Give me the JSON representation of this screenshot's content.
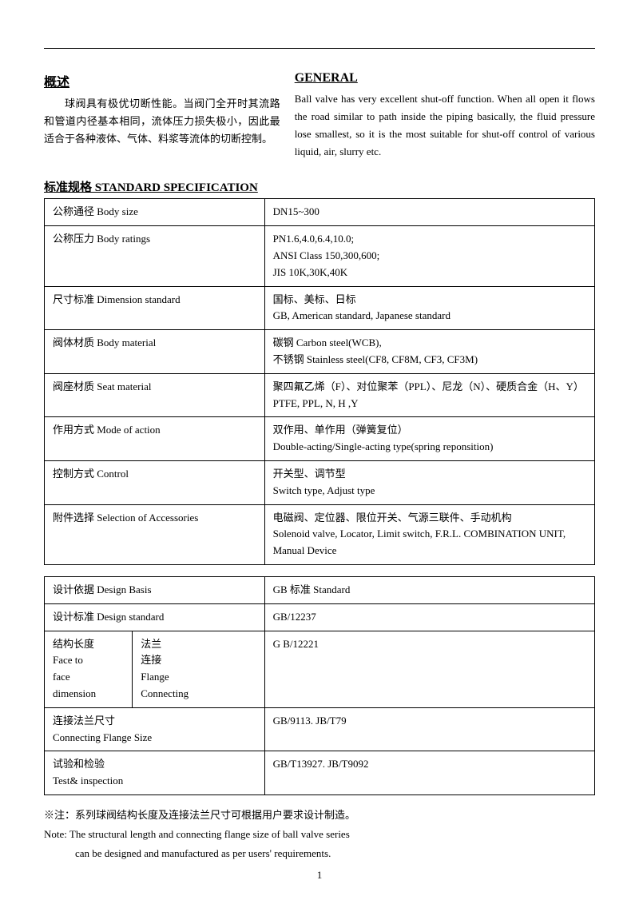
{
  "overview": {
    "cn_heading": "概述",
    "cn_body": "球阀具有极优切断性能。当阀门全开时其流路和管道内径基本相同，流体压力损失极小，因此最适合于各种液体、气体、料浆等流体的切断控制。",
    "en_heading": "GENERAL",
    "en_body": "Ball valve has very excellent shut-off function. When all open it flows the road similar to path inside the piping basically, the fluid pressure lose smallest, so it is the most suitable for shut-off control of various liquid, air, slurry etc."
  },
  "spec_title": "标准规格  STANDARD SPECIFICATION",
  "spec_rows": [
    {
      "label": "公称通径 Body size",
      "value": "DN15~300"
    },
    {
      "label": "公称压力 Body ratings",
      "value": "PN1.6,4.0,6.4,10.0;\nANSI Class 150,300,600;\nJIS 10K,30K,40K"
    },
    {
      "label": "尺寸标准 Dimension standard",
      "value": "国标、美标、日标\nGB, American standard, Japanese standard"
    },
    {
      "label": "阀体材质 Body material",
      "value": "碳钢 Carbon steel(WCB),\n不锈钢 Stainless steel(CF8, CF8M, CF3, CF3M)"
    },
    {
      "label": "阀座材质 Seat material",
      "value": "聚四氟乙烯（F）、对位聚苯（PPL）、尼龙（N）、硬质合金（H、Y）\nPTFE, PPL, N, H ,Y"
    },
    {
      "label": "作用方式 Mode of action",
      "value": "双作用、单作用（弹簧复位）\nDouble-acting/Single-acting type(spring reponsition)"
    },
    {
      "label": "控制方式 Control",
      "value": "开关型、调节型\nSwitch type, Adjust type"
    },
    {
      "label": "附件选择 Selection of Accessories",
      "value": "电磁阀、定位器、限位开关、气源三联件、手动机构\nSolenoid valve, Locator, Limit switch, F.R.L. COMBINATION UNIT, Manual Device"
    }
  ],
  "design_rows": {
    "basis": {
      "label": "设计依据    Design Basis",
      "value": "GB 标准 Standard"
    },
    "std": {
      "label": "设计标准 Design standard",
      "value": " GB/12237"
    },
    "face": {
      "label_a": "结构长度\n  Face to\n    face\ndimension",
      "label_b": "法兰\n连接\n Flange\nConnecting",
      "value": " G B/12221"
    },
    "flange": {
      "label": "连接法兰尺寸\nConnecting Flange Size",
      "value": "GB/9113. JB/T79"
    },
    "test": {
      "label": "试验和检验\nTest& inspection",
      "value": "GB/T13927. JB/T9092"
    }
  },
  "note": {
    "line1": "※注：系列球阀结构长度及连接法兰尺寸可根据用户要求设计制造。",
    "line2": "Note:    The structural length and connecting flange size of ball valve series",
    "line3": "can be designed and manufactured as per users' requirements."
  },
  "page_number": "1"
}
